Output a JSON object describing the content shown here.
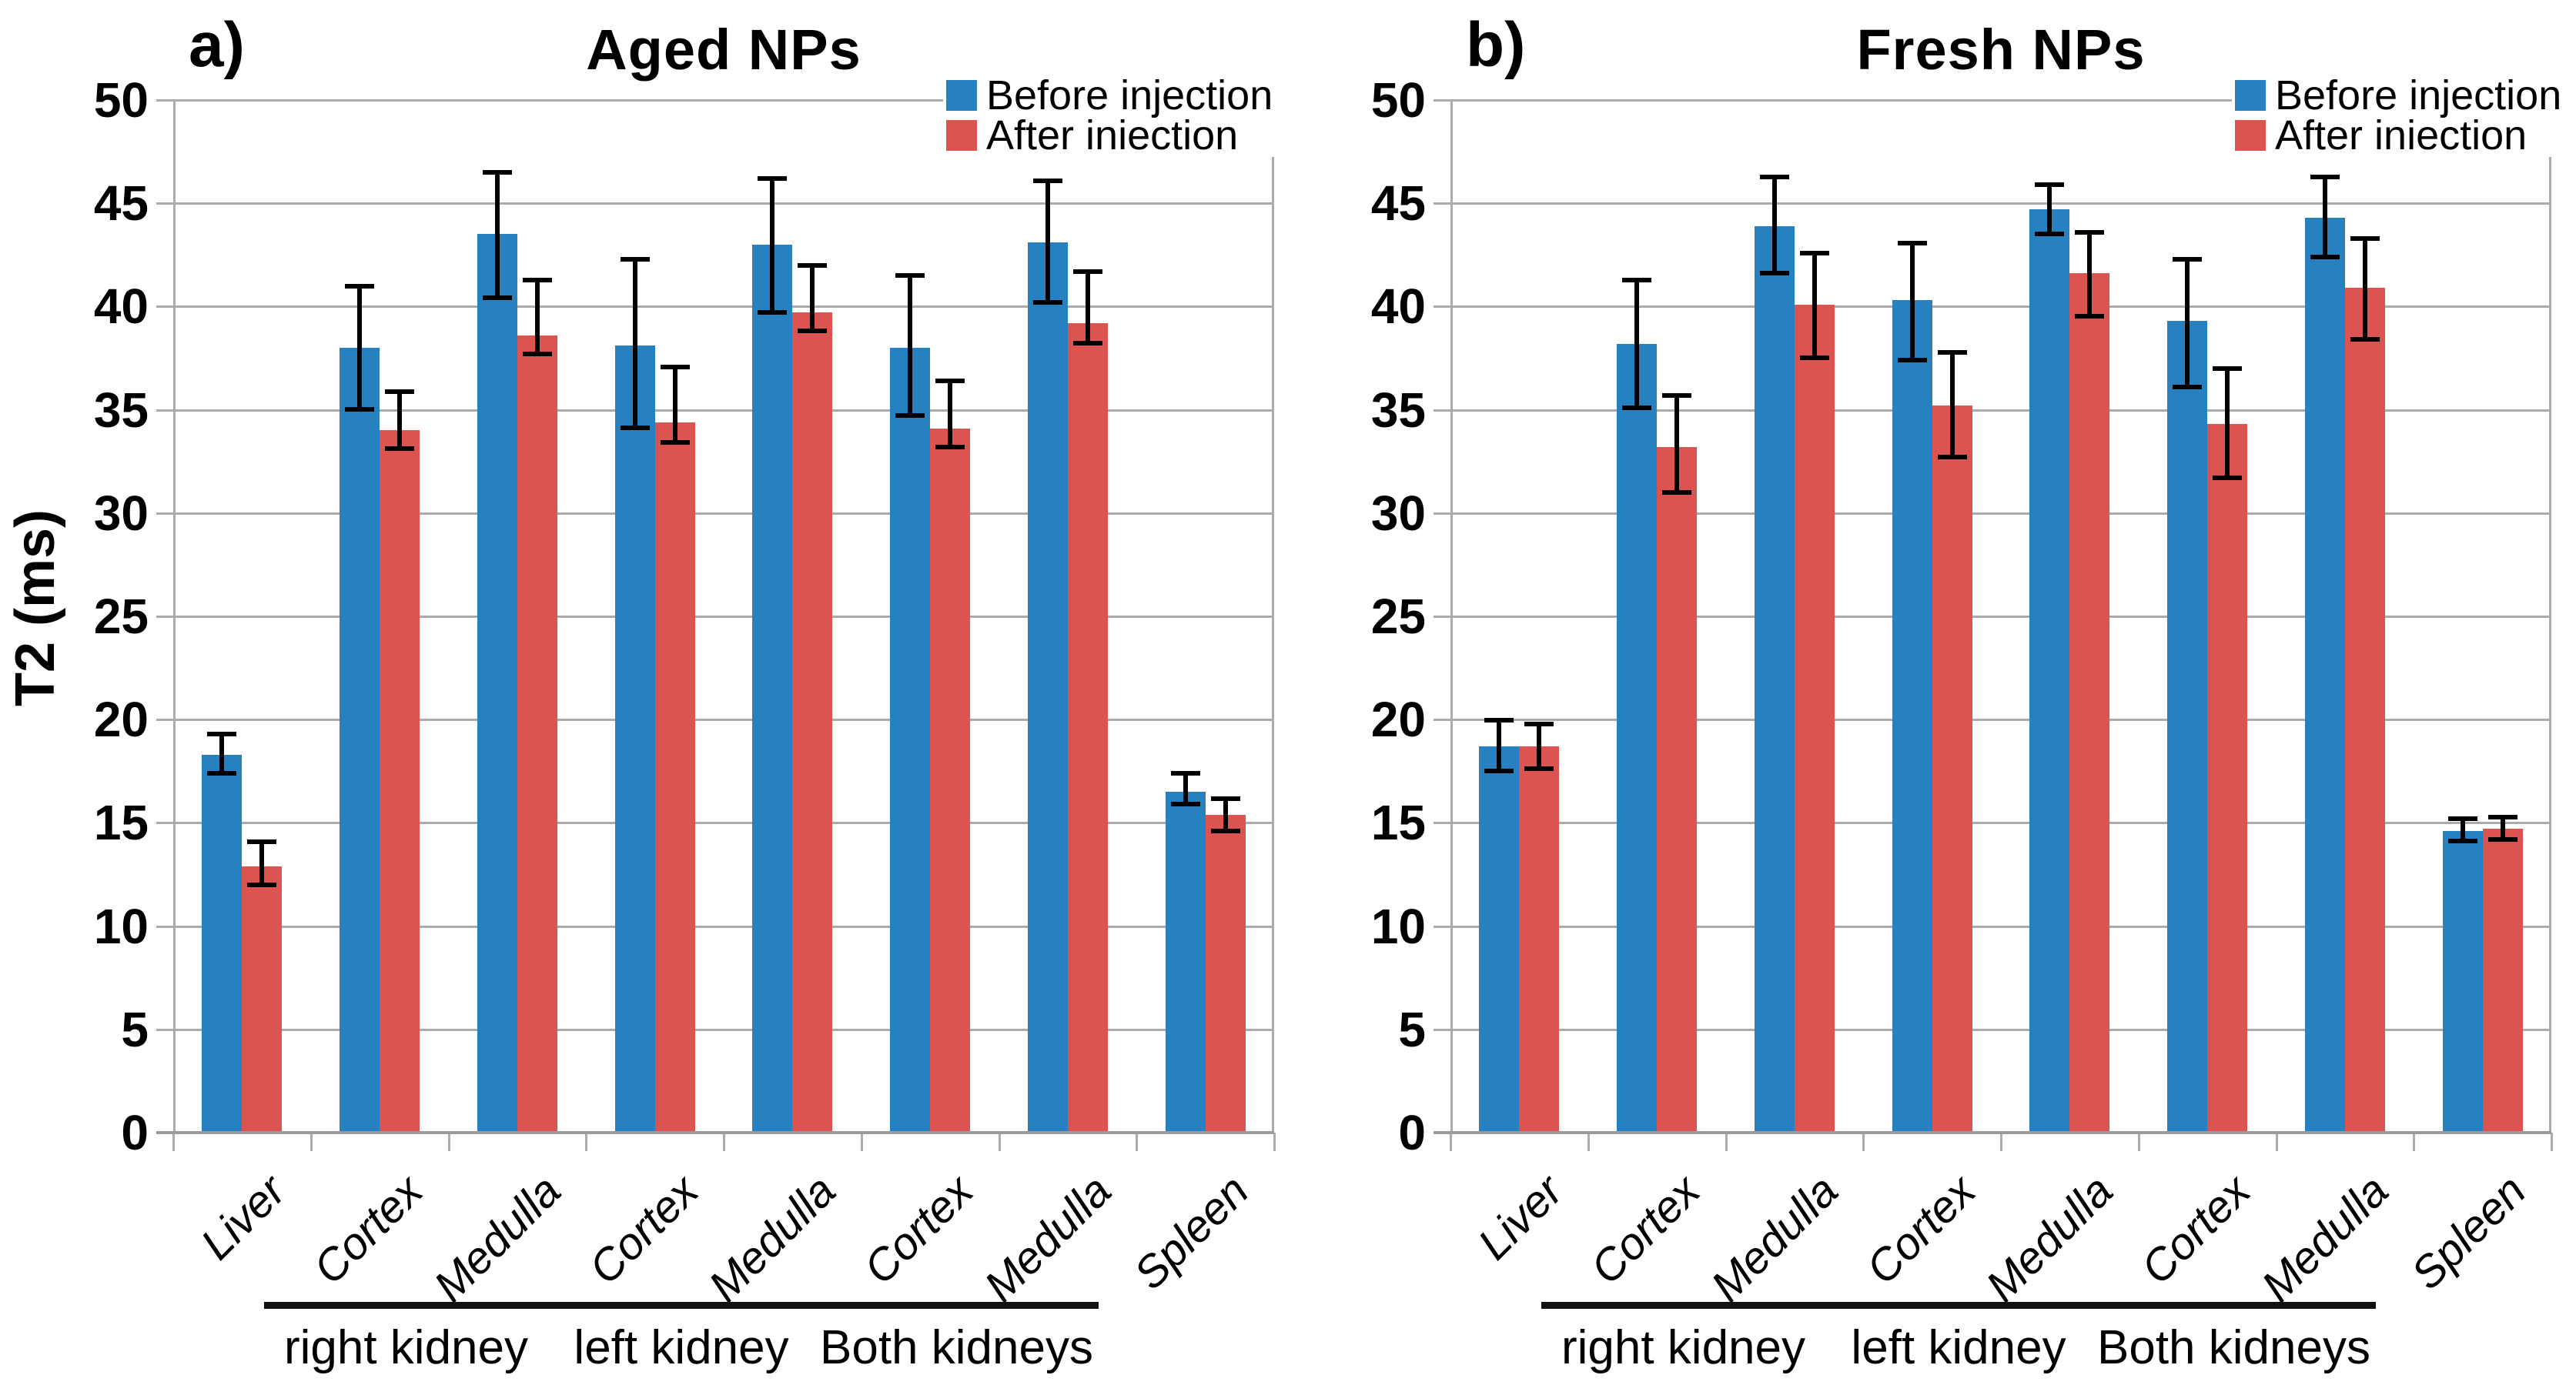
{
  "figure": {
    "description_title_left": "Aged NPs",
    "description_title_right": "Fresh NPs",
    "colors": {
      "before": "#2780C0",
      "after": "#DB5451",
      "grid": "#ABABAB",
      "axis": "#9B9B9B",
      "error": "#000000",
      "text": "#000000"
    }
  },
  "chart_data": [
    {
      "type": "bar",
      "panel_label": "a)",
      "title": "Aged NPs",
      "ylabel": "T2 (ms)",
      "xlabel": "",
      "ylim": [
        0,
        50
      ],
      "ytick_step": 5,
      "grid": true,
      "legend_position": "top-right",
      "legend": [
        "Before injection",
        "After iniection"
      ],
      "categories": [
        "Liver",
        "Cortex",
        "Medulla",
        "Cortex",
        "Medulla",
        "Cortex",
        "Medulla",
        "Spleen"
      ],
      "groups": [
        {
          "from": 1,
          "to": 2,
          "label": "right kidney"
        },
        {
          "from": 3,
          "to": 4,
          "label": "left kidney"
        },
        {
          "from": 5,
          "to": 6,
          "label": "Both kidneys"
        }
      ],
      "series": [
        {
          "name": "Before injection",
          "values": [
            18.3,
            38.0,
            43.5,
            38.1,
            43.0,
            38.0,
            43.1,
            16.5
          ],
          "err_lo": [
            17.3,
            34.9,
            40.3,
            34.0,
            39.6,
            34.6,
            40.1,
            15.8
          ],
          "err_hi": [
            19.4,
            41.1,
            46.6,
            42.4,
            46.3,
            41.6,
            46.2,
            17.5
          ]
        },
        {
          "name": "After iniection",
          "values": [
            12.9,
            34.0,
            38.6,
            34.4,
            39.7,
            34.1,
            39.2,
            15.4
          ],
          "err_lo": [
            11.9,
            33.0,
            37.6,
            33.3,
            38.7,
            33.1,
            38.1,
            14.5
          ],
          "err_hi": [
            14.2,
            36.0,
            41.4,
            37.2,
            42.1,
            36.5,
            41.8,
            16.3
          ]
        }
      ]
    },
    {
      "type": "bar",
      "panel_label": "b)",
      "title": "Fresh NPs",
      "ylabel": "",
      "xlabel": "",
      "ylim": [
        0,
        50
      ],
      "ytick_step": 5,
      "grid": true,
      "legend_position": "top-right",
      "legend": [
        "Before injection",
        "After iniection"
      ],
      "categories": [
        "Liver",
        "Cortex",
        "Medulla",
        "Cortex",
        "Medulla",
        "Cortex",
        "Medulla",
        "Spleen"
      ],
      "groups": [
        {
          "from": 1,
          "to": 2,
          "label": "right kidney"
        },
        {
          "from": 3,
          "to": 4,
          "label": "left kidney"
        },
        {
          "from": 5,
          "to": 6,
          "label": "Both kidneys"
        }
      ],
      "series": [
        {
          "name": "Before injection",
          "values": [
            18.7,
            38.2,
            43.9,
            40.3,
            44.7,
            39.3,
            44.3,
            14.6
          ],
          "err_lo": [
            17.4,
            35.0,
            41.5,
            37.3,
            43.4,
            36.0,
            42.3,
            14.0
          ],
          "err_hi": [
            20.1,
            41.4,
            46.4,
            43.2,
            46.0,
            42.4,
            46.4,
            15.3
          ]
        },
        {
          "name": "After iniection",
          "values": [
            18.7,
            33.2,
            40.1,
            35.2,
            41.6,
            34.3,
            40.9,
            14.7
          ],
          "err_lo": [
            17.5,
            30.9,
            37.4,
            32.6,
            39.4,
            31.6,
            38.3,
            14.1
          ],
          "err_hi": [
            19.9,
            35.8,
            42.7,
            37.9,
            43.7,
            37.1,
            43.4,
            15.4
          ]
        }
      ]
    }
  ]
}
